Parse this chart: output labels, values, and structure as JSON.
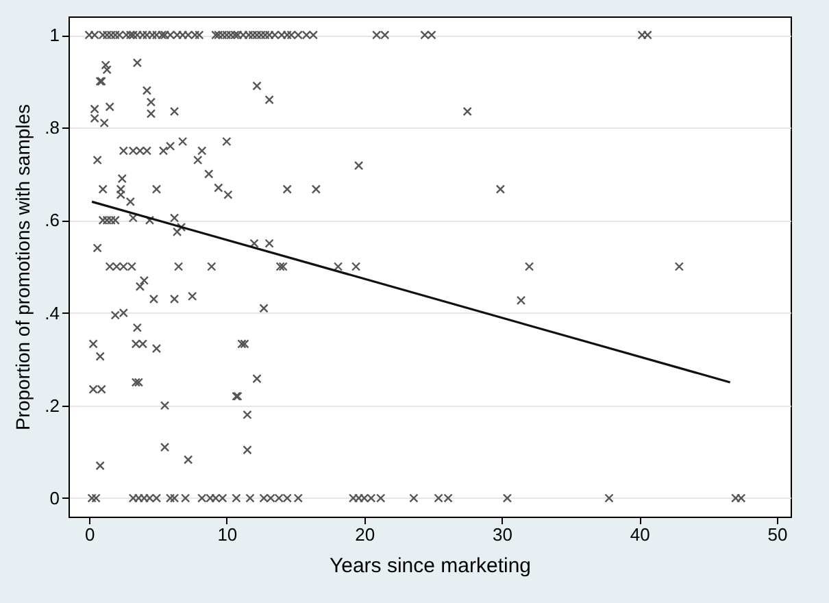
{
  "chart_data": {
    "type": "scatter",
    "xlabel": "Years since marketing",
    "ylabel": "Proportion of promotions with samples",
    "xlim": [
      -1.5,
      51
    ],
    "ylim": [
      -0.04,
      1.04
    ],
    "xticks": [
      0,
      10,
      20,
      30,
      40,
      50
    ],
    "yticks": [
      {
        "value": 0,
        "label": "0"
      },
      {
        "value": 0.2,
        "label": ".2"
      },
      {
        "value": 0.4,
        "label": ".4"
      },
      {
        "value": 0.6,
        "label": ".6"
      },
      {
        "value": 0.8,
        "label": ".8"
      },
      {
        "value": 1,
        "label": "1"
      }
    ],
    "grid": "y",
    "series": [
      {
        "color": "#555555",
        "marker": "cross",
        "x": [
          0,
          0.4,
          1,
          1.3,
          1.6,
          1.9,
          2.2,
          2.7,
          3,
          3.2,
          3.5,
          3.9,
          4.2,
          4.6,
          4.9,
          5.3,
          5.5,
          5.9,
          6.4,
          6.8,
          7.2,
          7.7,
          8,
          9.2,
          9.4,
          9.7,
          10,
          10.3,
          10.6,
          10.8,
          11.2,
          11.6,
          11.9,
          12.2,
          12.5,
          12.8,
          13.1,
          13.5,
          14,
          14.4,
          14.7,
          15.2,
          15.8,
          16.3,
          20.9,
          21.5,
          24.4,
          24.9,
          40.2,
          40.6,
          1.2,
          1.3,
          3.5,
          0.8,
          0.9,
          4.2,
          4.5,
          1.5,
          0.4,
          4.5,
          6.2,
          0.4,
          1.1,
          0.6,
          2.5,
          3.2,
          3.7,
          4.2,
          5.4,
          5.9,
          6.8,
          8.2,
          7.9,
          8.7,
          10,
          9.4,
          10.1,
          2.4,
          2.3,
          2.3,
          1,
          4.9,
          3,
          3.2,
          1,
          1.3,
          1.6,
          1.9,
          4.4,
          6.2,
          6.4,
          6.7,
          0.6,
          1.5,
          2,
          2.5,
          3.1,
          6.5,
          8.9,
          3.7,
          4,
          4.7,
          6.2,
          7.5,
          1.9,
          2.5,
          3.5,
          0.3,
          0.8,
          3.4,
          3.9,
          4.9,
          11.1,
          3.4,
          3.6,
          0.3,
          0.9,
          10.7,
          5.5,
          5.5,
          7.2,
          0.8,
          0.2,
          0.5,
          3.2,
          3.6,
          4,
          4.4,
          4.9,
          5.9,
          6.2,
          7,
          8.2,
          8.8,
          9.2,
          9.7,
          10.7,
          12.2,
          13.1,
          19.6,
          14.4,
          16.5,
          12,
          13.1,
          13.9,
          14.1,
          18.1,
          19.4,
          12.7,
          11.3,
          12.2,
          10.8,
          11.5,
          11.5,
          11.7,
          12.7,
          13.2,
          13.8,
          14.4,
          15.2,
          19.2,
          19.6,
          20,
          20.5,
          21.2,
          27.5,
          29.9,
          32,
          31.4,
          42.9,
          23.6,
          25.4,
          26.1,
          30.4,
          37.8,
          47,
          47.4
        ],
        "values": [
          1,
          1,
          1,
          1,
          1,
          1,
          1,
          1,
          1,
          1,
          1,
          1,
          1,
          1,
          1,
          1,
          1,
          1,
          1,
          1,
          1,
          1,
          1,
          1,
          1,
          1,
          1,
          1,
          1,
          1,
          1,
          1,
          1,
          1,
          1,
          1,
          1,
          1,
          1,
          1,
          1,
          1,
          1,
          1,
          1,
          1,
          1,
          1,
          1,
          1,
          0.935,
          0.925,
          0.94,
          0.9,
          0.9,
          0.88,
          0.855,
          0.845,
          0.84,
          0.83,
          0.835,
          0.82,
          0.81,
          0.73,
          0.75,
          0.75,
          0.75,
          0.75,
          0.75,
          0.76,
          0.77,
          0.75,
          0.73,
          0.7,
          0.77,
          0.67,
          0.655,
          0.69,
          0.667,
          0.655,
          0.667,
          0.667,
          0.64,
          0.605,
          0.6,
          0.6,
          0.6,
          0.6,
          0.6,
          0.605,
          0.575,
          0.585,
          0.54,
          0.5,
          0.5,
          0.5,
          0.5,
          0.5,
          0.5,
          0.457,
          0.47,
          0.43,
          0.43,
          0.436,
          0.395,
          0.4,
          0.368,
          0.333,
          0.306,
          0.333,
          0.333,
          0.323,
          0.333,
          0.25,
          0.25,
          0.235,
          0.235,
          0.22,
          0.2,
          0.11,
          0.083,
          0.07,
          0,
          0,
          0,
          0,
          0,
          0,
          0,
          0,
          0,
          0,
          0,
          0,
          0,
          0,
          0,
          0.89,
          0.86,
          0.718,
          0.667,
          0.667,
          0.55,
          0.55,
          0.5,
          0.5,
          0.5,
          0.5,
          0.41,
          0.333,
          0.258,
          0.22,
          0.18,
          0.104,
          0,
          0,
          0,
          0,
          0,
          0,
          0,
          0,
          0,
          0,
          0,
          0.835,
          0.667,
          0.5,
          0.427,
          0.5,
          0,
          0,
          0,
          0,
          0,
          0,
          0
        ]
      },
      {
        "type": "line",
        "color": "#111111",
        "x": [
          0.2,
          46.6
        ],
        "values": [
          0.64,
          0.25
        ]
      }
    ]
  }
}
